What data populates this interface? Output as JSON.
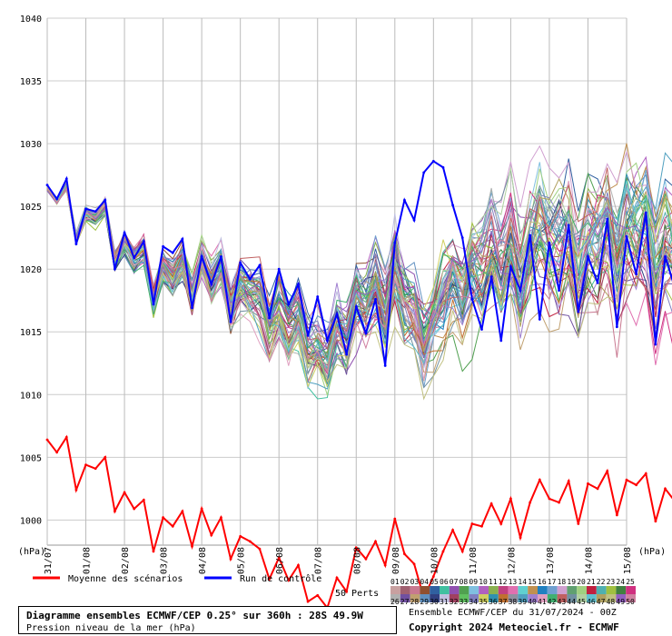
{
  "chart_data": {
    "type": "line",
    "ylabel_left": "(hPa)",
    "ylabel_right": "(hPa)",
    "ylim_main": [
      998,
      1040
    ],
    "yticks": [
      1000,
      1005,
      1010,
      1015,
      1020,
      1025,
      1030,
      1035,
      1040
    ],
    "x_tick_labels": [
      "31/07",
      "01/08",
      "02/08",
      "03/08",
      "04/08",
      "05/08",
      "06/08",
      "07/08",
      "08/08",
      "09/08",
      "10/08",
      "11/08",
      "12/08",
      "13/08",
      "14/08",
      "15/08"
    ],
    "steps_per_day": 4,
    "grid": true,
    "series": [
      {
        "name": "Moyenne des scénarios",
        "color": "#ff0000",
        "values": [
          1006.4,
          1005.4,
          1006.6,
          1002.4,
          1004.4,
          1004.1,
          1005.0,
          1000.7,
          1002.2,
          1000.9,
          1001.6,
          997.5,
          1000.2,
          999.5,
          1000.7,
          997.9,
          1000.9,
          998.8,
          1000.2,
          996.9,
          998.7,
          998.3,
          997.7,
          995.3,
          997.0,
          995.2,
          996.4,
          993.5,
          994.0,
          993.0,
          995.4,
          994.3,
          997.8,
          996.9,
          998.3,
          996.4,
          1000.1,
          997.3,
          996.5,
          993.8,
          995.5,
          997.5,
          999.2,
          997.5,
          999.7,
          999.5,
          1001.3,
          999.7,
          1001.7,
          998.6,
          1001.4,
          1003.2,
          1001.7,
          1001.4,
          1003.1,
          999.7,
          1002.9,
          1002.5,
          1003.9,
          1000.4,
          1003.2,
          1002.8,
          1003.7,
          999.9,
          1002.5,
          1001.5,
          1002.7,
          998.9,
          1001.3
        ]
      },
      {
        "name": "Run de contrôle",
        "color": "#0000ff",
        "values": [
          1026.7,
          1025.6,
          1027.2,
          1022.0,
          1024.8,
          1024.6,
          1025.5,
          1020.0,
          1022.9,
          1020.9,
          1022.2,
          1017.2,
          1021.8,
          1021.3,
          1022.4,
          1016.9,
          1021.0,
          1018.8,
          1021.0,
          1015.8,
          1020.5,
          1019.2,
          1020.3,
          1016.1,
          1020.0,
          1017.2,
          1018.8,
          1014.7,
          1017.8,
          1014.3,
          1016.4,
          1013.2,
          1017.0,
          1014.9,
          1017.6,
          1012.3,
          1022.1,
          1025.5,
          1023.9,
          1027.7,
          1028.6,
          1028.1,
          1025.1,
          1022.5,
          1017.6,
          1015.2,
          1019.4,
          1014.3,
          1020.2,
          1018.3,
          1022.7,
          1016.0,
          1022.1,
          1018.3,
          1023.5,
          1016.6,
          1021.0,
          1018.9,
          1024.0,
          1015.4,
          1022.6,
          1019.6,
          1024.5,
          1014.0,
          1021.0,
          1018.5,
          1025.1,
          1015.0,
          1022.6
        ]
      }
    ],
    "perturbation_count": 50,
    "ensemble_colors": [
      "#c8a0a0",
      "#a06070",
      "#c87890",
      "#905030",
      "#3060a0",
      "#40c0a0",
      "#9050b0",
      "#50a050",
      "#80c0e0",
      "#b060c0",
      "#8ab050",
      "#c04080",
      "#e070b0",
      "#60d0d0",
      "#c09050",
      "#2080c0",
      "#70a0d0",
      "#d0a0d0",
      "#60a070",
      "#a0d080",
      "#c02040",
      "#50b0b0",
      "#a0c040",
      "#408040",
      "#d03080",
      "#b0b0b0",
      "#7050a0",
      "#c0a070",
      "#6090c0",
      "#304080",
      "#c0c0e0",
      "#a04060",
      "#60c060",
      "#8080c0",
      "#d0d060",
      "#3090b0",
      "#c07030",
      "#9090a0",
      "#50a0c0",
      "#a080d0",
      "#e0a0c0",
      "#40b070",
      "#c06060",
      "#7090a0",
      "#b0d0a0",
      "#60c0d0",
      "#b0a060",
      "#c0c080",
      "#9060c0",
      "#d080a0"
    ]
  },
  "legend": {
    "mean_label": "Moyenne des scénarios",
    "control_label": "Run de contrôle",
    "perts_label": "50 Perts",
    "pert_numbers_row1": [
      "01",
      "02",
      "03",
      "04",
      "05",
      "06",
      "07",
      "08",
      "09",
      "10",
      "11",
      "12",
      "13",
      "14",
      "15",
      "16",
      "17",
      "18",
      "19",
      "20",
      "21",
      "22",
      "23",
      "24",
      "25"
    ],
    "pert_numbers_row2": [
      "26",
      "27",
      "28",
      "29",
      "30",
      "31",
      "32",
      "33",
      "34",
      "35",
      "36",
      "37",
      "38",
      "39",
      "40",
      "41",
      "42",
      "43",
      "44",
      "45",
      "46",
      "47",
      "48",
      "49",
      "50"
    ]
  },
  "title": {
    "main": "Diagramme ensembles ECMWF/CEP 0.25° sur 360h : 28S 49.9W",
    "sub": "Pression niveau de la mer (hPa)"
  },
  "run_info": "Ensemble ECMWF/CEP du 31/07/2024 - 00Z",
  "copyright": "Copyright 2024 Meteociel.fr - ECMWF"
}
